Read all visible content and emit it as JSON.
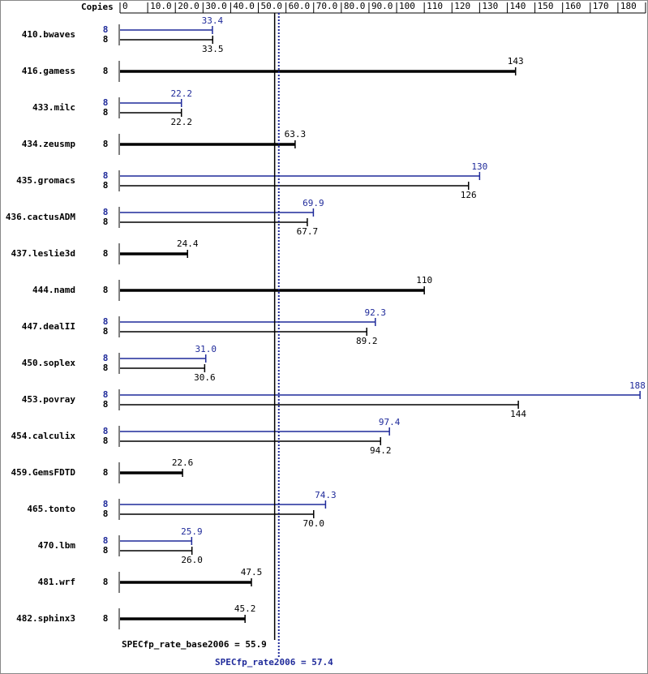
{
  "chart_data": {
    "type": "bar",
    "axis_label": "Copies",
    "xlim": [
      0,
      190
    ],
    "xticks": [
      0,
      {
        "value": 10,
        "label": "10.0"
      },
      {
        "value": 20,
        "label": "20.0"
      },
      {
        "value": 30,
        "label": "30.0"
      },
      {
        "value": 40,
        "label": "40.0"
      },
      {
        "value": 50,
        "label": "50.0"
      },
      {
        "value": 60,
        "label": "60.0"
      },
      {
        "value": 70,
        "label": "70.0"
      },
      {
        "value": 80,
        "label": "80.0"
      },
      {
        "value": 90,
        "label": "90.0"
      },
      100,
      110,
      120,
      130,
      140,
      150,
      160,
      170,
      180,
      190
    ],
    "categories": [
      "410.bwaves",
      "416.gamess",
      "433.milc",
      "434.zeusmp",
      "435.gromacs",
      "436.cactusADM",
      "437.leslie3d",
      "444.namd",
      "447.dealII",
      "450.soplex",
      "453.povray",
      "454.calculix",
      "459.GemsFDTD",
      "465.tonto",
      "470.lbm",
      "481.wrf",
      "482.sphinx3"
    ],
    "series": [
      {
        "color": "#1f2a9a",
        "copies": [
          8,
          null,
          8,
          null,
          8,
          8,
          null,
          null,
          8,
          8,
          8,
          8,
          null,
          8,
          8,
          null,
          null
        ],
        "values": [
          33.4,
          null,
          22.2,
          null,
          130,
          69.9,
          null,
          null,
          92.3,
          31.0,
          188,
          97.4,
          null,
          74.3,
          25.9,
          null,
          null
        ],
        "value_labels": [
          "33.4",
          null,
          "22.2",
          null,
          "130",
          "69.9",
          null,
          null,
          "92.3",
          "31.0",
          "188",
          "97.4",
          null,
          "74.3",
          "25.9",
          null,
          null
        ]
      },
      {
        "color": "#000000",
        "copies": [
          8,
          8,
          8,
          8,
          8,
          8,
          8,
          8,
          8,
          8,
          8,
          8,
          8,
          8,
          8,
          8,
          8
        ],
        "values": [
          33.5,
          143,
          22.2,
          63.3,
          126,
          67.7,
          24.4,
          110,
          89.2,
          30.6,
          144,
          94.2,
          22.6,
          70.0,
          26.0,
          47.5,
          45.2
        ],
        "value_labels": [
          "33.5",
          "143",
          "22.2",
          "63.3",
          "126",
          "67.7",
          "24.4",
          "110",
          "89.2",
          "30.6",
          "144",
          "94.2",
          "22.6",
          "70.0",
          "26.0",
          "47.5",
          "45.2"
        ]
      }
    ],
    "reference_lines": [
      {
        "label": "SPECfp_rate_base2006 = 55.9",
        "value": 55.9,
        "color": "#000000",
        "style": "solid"
      },
      {
        "label": "SPECfp_rate2006 = 57.4",
        "value": 57.4,
        "color": "#1f2a9a",
        "style": "dotted"
      }
    ]
  }
}
